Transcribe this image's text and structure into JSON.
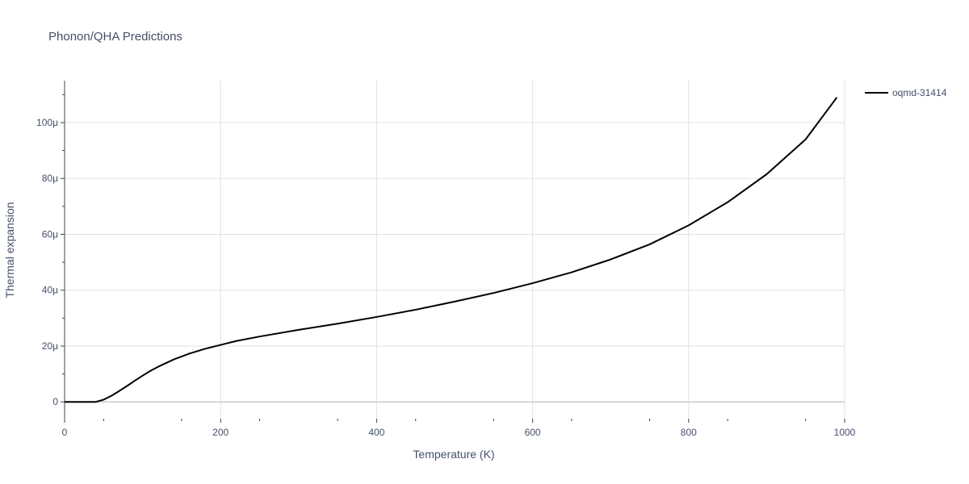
{
  "chart_data": {
    "type": "line",
    "title": "Phonon/QHA Predictions",
    "xlabel": "Temperature (K)",
    "ylabel": "Thermal expansion",
    "xlim": [
      0,
      1000
    ],
    "ylim": [
      -6,
      115
    ],
    "y_unit_suffix": "μ",
    "x_ticks": [
      0,
      200,
      400,
      600,
      800,
      1000
    ],
    "x_tick_labels": [
      "0",
      "200",
      "400",
      "600",
      "800",
      "1000"
    ],
    "y_ticks": [
      0,
      20,
      40,
      60,
      80,
      100
    ],
    "y_tick_labels": [
      "0",
      "20μ",
      "40μ",
      "60μ",
      "80μ",
      "100μ"
    ],
    "grid": true,
    "legend_position": "top-right",
    "colors": {
      "series": "#000000",
      "text": "#444f6a",
      "grid": "#e1e1e1"
    },
    "series": [
      {
        "name": "oqmd-31414",
        "x": [
          0,
          20,
          40,
          50,
          60,
          70,
          80,
          90,
          100,
          110,
          120,
          140,
          160,
          180,
          200,
          220,
          250,
          300,
          350,
          400,
          450,
          500,
          550,
          600,
          650,
          700,
          750,
          800,
          850,
          900,
          950,
          990
        ],
        "y": [
          0,
          0,
          0,
          0.8,
          2.2,
          3.9,
          5.7,
          7.6,
          9.4,
          11.1,
          12.6,
          15.2,
          17.3,
          19.0,
          20.4,
          21.8,
          23.4,
          25.8,
          28.0,
          30.4,
          33.0,
          35.9,
          39.0,
          42.5,
          46.4,
          51.0,
          56.4,
          63.2,
          71.5,
          81.5,
          94.0,
          109.0
        ]
      }
    ]
  }
}
